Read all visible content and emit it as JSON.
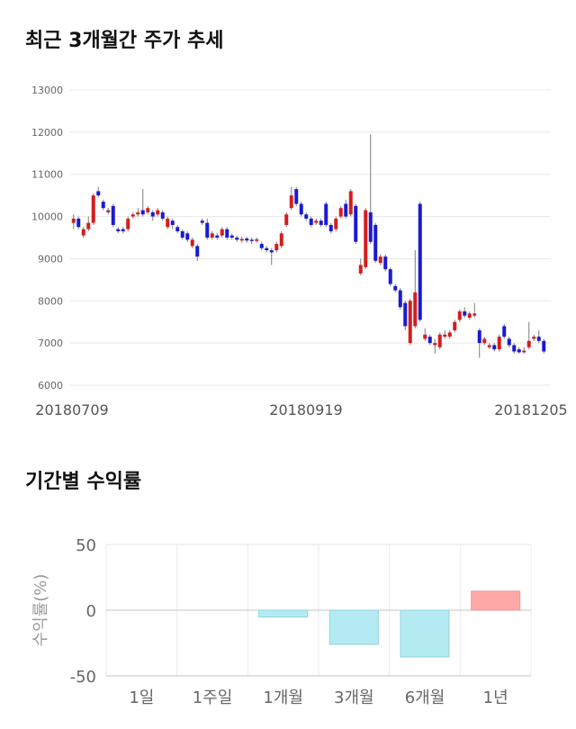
{
  "chart_data": [
    {
      "type": "candlestick",
      "title": "최근 3개월간 주가 추세",
      "x_tick_labels": [
        "20180709",
        "20180919",
        "20181205"
      ],
      "y_ticks": [
        6000,
        7000,
        8000,
        9000,
        10000,
        11000,
        12000,
        13000
      ],
      "ylim": [
        6000,
        13000
      ],
      "grid": true,
      "colors": {
        "up": "#d41e1e",
        "down": "#1a1ad0",
        "wick": "#7a7a7a"
      },
      "ohlc_fields": [
        "open",
        "high",
        "low",
        "close"
      ],
      "ohlc": [
        [
          9850,
          10050,
          9700,
          9950
        ],
        [
          9950,
          10000,
          9700,
          9750
        ],
        [
          9550,
          9750,
          9500,
          9700
        ],
        [
          9700,
          10000,
          9650,
          9850
        ],
        [
          9850,
          10550,
          9800,
          10500
        ],
        [
          10600,
          10700,
          10450,
          10500
        ],
        [
          10350,
          10400,
          10150,
          10200
        ],
        [
          10100,
          10200,
          10050,
          10150
        ],
        [
          10250,
          10300,
          9750,
          9800
        ],
        [
          9700,
          9750,
          9600,
          9650
        ],
        [
          9700,
          9750,
          9600,
          9650
        ],
        [
          9700,
          10000,
          9650,
          9950
        ],
        [
          10000,
          10100,
          9950,
          10050
        ],
        [
          10050,
          10200,
          10000,
          10100
        ],
        [
          10150,
          10650,
          10000,
          10050
        ],
        [
          10100,
          10250,
          10050,
          10200
        ],
        [
          10100,
          10150,
          9900,
          10000
        ],
        [
          10050,
          10200,
          10000,
          10150
        ],
        [
          10100,
          10150,
          9900,
          9950
        ],
        [
          9750,
          10000,
          9700,
          9950
        ],
        [
          9900,
          9950,
          9700,
          9800
        ],
        [
          9750,
          9800,
          9600,
          9650
        ],
        [
          9650,
          9700,
          9450,
          9500
        ],
        [
          9600,
          9650,
          9400,
          9450
        ],
        [
          9300,
          9500,
          9250,
          9450
        ],
        [
          9300,
          9350,
          8950,
          9050
        ],
        [
          9900,
          9950,
          9800,
          9850
        ],
        [
          9850,
          9950,
          9450,
          9500
        ],
        [
          9500,
          9650,
          9450,
          9600
        ],
        [
          9550,
          9600,
          9450,
          9500
        ],
        [
          9550,
          9750,
          9500,
          9700
        ],
        [
          9700,
          9750,
          9450,
          9500
        ],
        [
          9550,
          9600,
          9450,
          9500
        ],
        [
          9500,
          9550,
          9400,
          9450
        ],
        [
          9430,
          9520,
          9380,
          9470
        ],
        [
          9480,
          9520,
          9380,
          9430
        ],
        [
          9450,
          9500,
          9350,
          9420
        ],
        [
          9420,
          9500,
          9380,
          9460
        ],
        [
          9350,
          9400,
          9200,
          9250
        ],
        [
          9250,
          9300,
          9150,
          9200
        ],
        [
          9200,
          9250,
          8850,
          9150
        ],
        [
          9200,
          9400,
          9150,
          9350
        ],
        [
          9300,
          9650,
          9250,
          9600
        ],
        [
          9800,
          10100,
          9750,
          10050
        ],
        [
          10200,
          10700,
          10150,
          10500
        ],
        [
          10650,
          10700,
          10250,
          10300
        ],
        [
          10300,
          10350,
          10000,
          10050
        ],
        [
          10050,
          10100,
          9900,
          9950
        ],
        [
          9950,
          10000,
          9750,
          9800
        ],
        [
          9850,
          9950,
          9800,
          9900
        ],
        [
          9900,
          9950,
          9750,
          9800
        ],
        [
          10300,
          10350,
          9750,
          9800
        ],
        [
          9800,
          9850,
          9600,
          9650
        ],
        [
          9700,
          10000,
          9650,
          9950
        ],
        [
          10000,
          10250,
          9950,
          10200
        ],
        [
          10300,
          10400,
          9950,
          10000
        ],
        [
          10050,
          10650,
          10000,
          10600
        ],
        [
          10250,
          10300,
          9350,
          9400
        ],
        [
          8650,
          9000,
          8600,
          8850
        ],
        [
          8800,
          10200,
          8750,
          10150
        ],
        [
          10100,
          11950,
          9350,
          9400
        ],
        [
          9800,
          9850,
          8900,
          8950
        ],
        [
          8900,
          9100,
          8850,
          9050
        ],
        [
          9050,
          9100,
          8700,
          8750
        ],
        [
          8750,
          8800,
          8350,
          8400
        ],
        [
          8350,
          8400,
          8200,
          8250
        ],
        [
          8250,
          8300,
          7800,
          7850
        ],
        [
          7950,
          8000,
          7300,
          7400
        ],
        [
          7000,
          8050,
          6950,
          8000
        ],
        [
          7400,
          9200,
          7350,
          8200
        ],
        [
          10300,
          10350,
          7500,
          7550
        ],
        [
          7100,
          7350,
          7050,
          7200
        ],
        [
          7150,
          7200,
          6950,
          7000
        ],
        [
          6950,
          7100,
          6750,
          7000
        ],
        [
          6900,
          7250,
          6850,
          7200
        ],
        [
          7150,
          7300,
          7100,
          7200
        ],
        [
          7150,
          7300,
          7100,
          7250
        ],
        [
          7300,
          7550,
          7250,
          7500
        ],
        [
          7550,
          7800,
          7500,
          7750
        ],
        [
          7750,
          7850,
          7600,
          7650
        ],
        [
          7600,
          7750,
          7550,
          7700
        ],
        [
          7650,
          7950,
          7600,
          7700
        ],
        [
          7300,
          7350,
          6650,
          7000
        ],
        [
          7000,
          7150,
          6950,
          7100
        ],
        [
          6900,
          7000,
          6850,
          6950
        ],
        [
          6950,
          7000,
          6800,
          6850
        ],
        [
          6850,
          7200,
          6800,
          7150
        ],
        [
          7400,
          7450,
          7100,
          7150
        ],
        [
          7100,
          7150,
          6900,
          6950
        ],
        [
          6950,
          7000,
          6750,
          6800
        ],
        [
          6850,
          6900,
          6750,
          6780
        ],
        [
          6780,
          6900,
          6750,
          6820
        ],
        [
          6900,
          7500,
          6850,
          7050
        ],
        [
          7100,
          7200,
          7050,
          7150
        ],
        [
          7150,
          7300,
          7000,
          7050
        ],
        [
          7050,
          7100,
          6750,
          6800
        ]
      ]
    },
    {
      "type": "bar",
      "title": "기간별 수익률",
      "categories": [
        "1일",
        "1주일",
        "1개월",
        "3개월",
        "6개월",
        "1년"
      ],
      "values": [
        0,
        0,
        -5.2,
        -26.0,
        -35.6,
        14.5
      ],
      "xlabel": "",
      "ylabel": "수익률(%)",
      "y_ticks": [
        50,
        0,
        -50
      ],
      "ylim": [
        -50,
        50
      ],
      "grid": true,
      "colors": {
        "positive_fill": "#ffa8a8",
        "positive_stroke": "#f29696",
        "negative_fill": "#b4ebf3",
        "negative_stroke": "#8fd3dd"
      }
    }
  ]
}
